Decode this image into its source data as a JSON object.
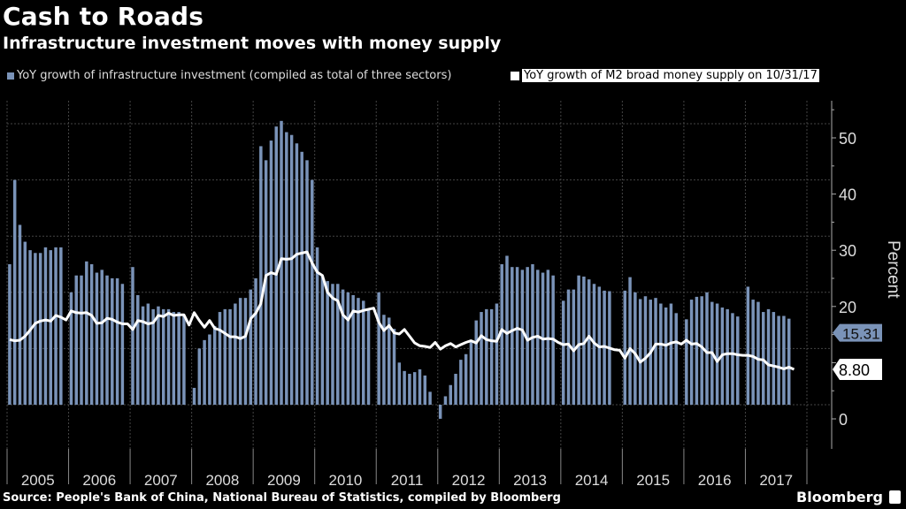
{
  "header": {
    "title": "Cash to Roads",
    "subtitle": "Infrastructure investment moves with money supply"
  },
  "footer": {
    "source": "Source: People's Bank of China, National Bureau of Statistics, compiled by Bloomberg",
    "brand": "Bloomberg"
  },
  "chart_data": {
    "type": "bar",
    "title": "Cash to Roads",
    "subtitle": "Infrastructure investment moves with money supply",
    "xlabel": "",
    "ylabel": "Percent",
    "ylim": [
      -4,
      56
    ],
    "yticks": [
      0,
      10,
      20,
      30,
      40,
      50
    ],
    "grid": true,
    "legend_position": "top",
    "categories": [
      "2005",
      "2006",
      "2007",
      "2008",
      "2009",
      "2010",
      "2011",
      "2012",
      "2013",
      "2014",
      "2015",
      "2016",
      "2017"
    ],
    "colors": {
      "bars": "#7a93b8",
      "line": "#ffffff"
    },
    "series": [
      {
        "name": "YoY growth of infrastructure investment (compiled as total of three sectors)",
        "type": "bar",
        "last_value_label": "15.31",
        "values": [
          25,
          40,
          32,
          29,
          27.5,
          27,
          27,
          28,
          27.5,
          28,
          28,
          null,
          20,
          23,
          23,
          25.5,
          25,
          23.5,
          24,
          23,
          22.5,
          22.5,
          21.5,
          null,
          24.5,
          19.5,
          17.5,
          18,
          17,
          17.5,
          17,
          17,
          16.5,
          16.5,
          16,
          null,
          3,
          10,
          11.5,
          12.5,
          14,
          16.5,
          17,
          17,
          18,
          19,
          19,
          20.5,
          22.5,
          46,
          43.5,
          47,
          49.5,
          50.5,
          48.5,
          48,
          46.5,
          45,
          43.5,
          40,
          28,
          23,
          22,
          21.5,
          21.5,
          20.5,
          20,
          19.5,
          19,
          18.5,
          17,
          null,
          20,
          16,
          15.5,
          13.5,
          7.5,
          6,
          5.5,
          5.8,
          6.3,
          5.2,
          2.3,
          null,
          -2.5,
          1.5,
          3.5,
          5.5,
          8,
          9,
          11.5,
          15,
          16.5,
          17,
          17,
          18,
          25,
          26.5,
          24.5,
          24.5,
          24,
          24.5,
          25,
          24,
          23.5,
          24,
          23,
          null,
          18.5,
          20.5,
          20.5,
          23,
          22.8,
          22.3,
          21.5,
          21,
          20.3,
          20.2,
          null,
          null,
          20.3,
          22.7,
          20,
          18.8,
          19.3,
          18.7,
          19,
          18,
          17.3,
          18,
          16.3,
          null,
          15.2,
          18.7,
          19.2,
          19.3,
          20,
          18.3,
          18,
          17.3,
          17,
          16.3,
          15.7,
          null,
          21,
          18.7,
          18.3,
          16.5,
          17,
          16.5,
          15.8,
          15.8,
          15.31
        ]
      },
      {
        "name": "YoY growth of M2 broad money supply on 10/31/17",
        "type": "line",
        "last_value_label": "8.80",
        "values": [
          14.1,
          13.9,
          14,
          14.7,
          15.8,
          17,
          17.4,
          17.6,
          17.4,
          18.4,
          18.1,
          17.6,
          19.2,
          18.9,
          18.8,
          18.9,
          18.4,
          17,
          17.1,
          17.9,
          17.7,
          17.2,
          16.9,
          16.9,
          15.9,
          17.5,
          17.3,
          16.9,
          17.1,
          18.4,
          18.2,
          18.8,
          18.4,
          18.5,
          18.5,
          16.7,
          18.9,
          17.5,
          16.3,
          17.5,
          16.1,
          15.8,
          15.2,
          14.6,
          14.6,
          14.3,
          14.7,
          17.8,
          18.8,
          20.5,
          25.5,
          26,
          25.7,
          28.5,
          28.4,
          28.5,
          29.3,
          29.5,
          29.7,
          27.7,
          26.1,
          25.5,
          22.5,
          21.5,
          21,
          18.5,
          17.6,
          19.2,
          19,
          19.3,
          19.5,
          19.7,
          17.2,
          15.7,
          16.6,
          15.3,
          15.1,
          15.9,
          14.7,
          13.5,
          13,
          12.9,
          12.7,
          13.6,
          12.4,
          13,
          13.4,
          12.8,
          13.2,
          13.6,
          13.9,
          13.5,
          14.8,
          14.1,
          13.9,
          13.8,
          15.9,
          15.2,
          15.7,
          16.1,
          15.8,
          14,
          14.5,
          14.7,
          14.2,
          14.3,
          14.2,
          13.6,
          13.2,
          13.3,
          12.1,
          13.2,
          13.4,
          14.7,
          13.5,
          12.8,
          12.9,
          12.6,
          12.3,
          12.2,
          10.8,
          12.5,
          11.6,
          10.1,
          10.8,
          11.8,
          13.3,
          13.3,
          13.1,
          13.5,
          13.7,
          13.3,
          14,
          13.3,
          13.4,
          12.8,
          11.8,
          11.8,
          10.2,
          11.4,
          11.6,
          11.6,
          11.4,
          11.3,
          11.3,
          11.1,
          10.6,
          10.5,
          9.6,
          9.4,
          9.2,
          8.9,
          9.2,
          8.8
        ]
      }
    ],
    "annotations": [
      "15.31",
      "8.80"
    ]
  }
}
